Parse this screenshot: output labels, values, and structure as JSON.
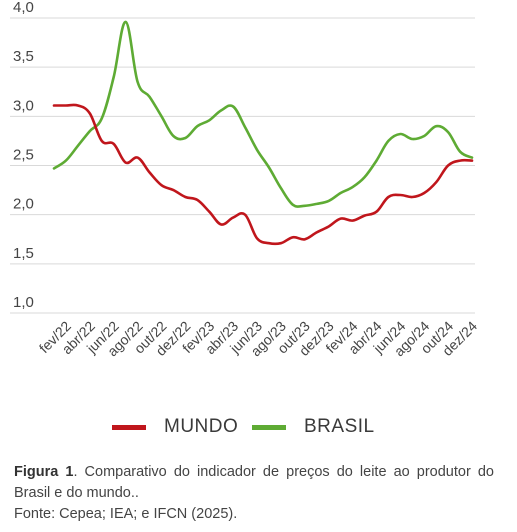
{
  "chart_data": {
    "type": "line",
    "ylim": [
      1.0,
      4.0
    ],
    "yticks": [
      "1,0",
      "1,5",
      "2,0",
      "2,5",
      "3,0",
      "3,5",
      "4,0"
    ],
    "x_tick_labels": [
      "fev/22",
      "abr/22",
      "jun/22",
      "ago/22",
      "out/22",
      "dez/22",
      "fev/23",
      "abr/23",
      "jun/23",
      "ago/23",
      "out/23",
      "dez/23",
      "fev/24",
      "abr/24",
      "jun/24",
      "ago/24",
      "out/24",
      "dez/24"
    ],
    "x": [
      "jan/22",
      "fev/22",
      "mar/22",
      "abr/22",
      "mai/22",
      "jun/22",
      "jul/22",
      "ago/22",
      "set/22",
      "out/22",
      "nov/22",
      "dez/22",
      "jan/23",
      "fev/23",
      "mar/23",
      "abr/23",
      "mai/23",
      "jun/23",
      "jul/23",
      "ago/23",
      "set/23",
      "out/23",
      "nov/23",
      "dez/23",
      "jan/24",
      "fev/24",
      "mar/24",
      "abr/24",
      "mai/24",
      "jun/24",
      "jul/24",
      "ago/24",
      "set/24",
      "out/24",
      "nov/24",
      "dez/24"
    ],
    "series": [
      {
        "name": "MUNDO",
        "color": "#c0161c",
        "values": [
          3.11,
          3.11,
          3.11,
          3.03,
          2.75,
          2.72,
          2.53,
          2.58,
          2.43,
          2.3,
          2.25,
          2.18,
          2.15,
          2.03,
          1.9,
          1.97,
          2.0,
          1.76,
          1.71,
          1.71,
          1.77,
          1.75,
          1.82,
          1.88,
          1.96,
          1.94,
          1.99,
          2.03,
          2.18,
          2.2,
          2.18,
          2.22,
          2.33,
          2.5,
          2.55,
          2.55
        ]
      },
      {
        "name": "BRASIL",
        "color": "#5eab34",
        "values": [
          2.47,
          2.55,
          2.7,
          2.85,
          2.98,
          3.4,
          3.96,
          3.35,
          3.2,
          3.0,
          2.8,
          2.78,
          2.9,
          2.96,
          3.06,
          3.1,
          2.89,
          2.66,
          2.48,
          2.27,
          2.1,
          2.09,
          2.11,
          2.14,
          2.22,
          2.28,
          2.38,
          2.55,
          2.75,
          2.82,
          2.77,
          2.8,
          2.9,
          2.84,
          2.64,
          2.58
        ]
      }
    ],
    "grid": true,
    "legend_position": "bottom"
  },
  "legend": {
    "mundo": "MUNDO",
    "brasil": "BRASIL"
  },
  "caption": {
    "figure_label": "Figura 1",
    "text": ". Comparativo do indicador de preços do leite ao produtor do Brasil e do mundo..",
    "source": "Fonte: Cepea; IEA; e IFCN (2025)."
  }
}
